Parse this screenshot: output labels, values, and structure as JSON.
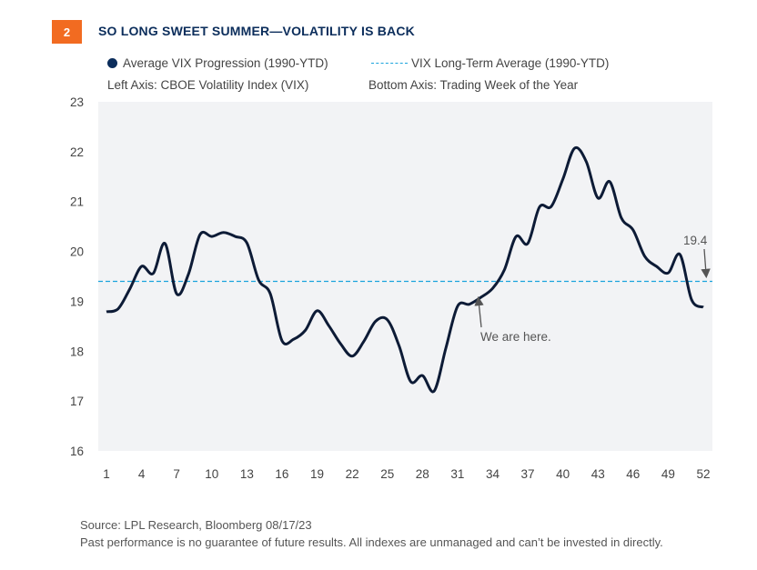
{
  "badge": "2",
  "title": "SO LONG SWEET SUMMER—VOLATILITY IS BACK",
  "legend": {
    "series": "Average VIX Progression (1990-YTD)",
    "average": "VIX Long-Term Average (1990-YTD)"
  },
  "axis_notes": {
    "left": "Left Axis: CBOE Volatility Index (VIX)",
    "bottom": "Bottom Axis: Trading Week of the Year"
  },
  "footer": {
    "source": "Source: LPL Research, Bloomberg 08/17/23",
    "disclaimer": "Past performance is no guarantee of future results. All indexes are unmanaged and can’t be invested in directly."
  },
  "colors": {
    "series": "#0d1b36",
    "average": "#1aa3dc",
    "badge": "#f26b21",
    "title": "#0b2d5b",
    "plot_bg": "#f2f3f5"
  },
  "chart_data": {
    "type": "line",
    "ylim": [
      16,
      23
    ],
    "yticks": [
      "16",
      "17",
      "18",
      "19",
      "20",
      "21",
      "22",
      "23"
    ],
    "xlim": [
      1,
      52
    ],
    "xticks": [
      "1",
      "4",
      "7",
      "10",
      "13",
      "16",
      "19",
      "22",
      "25",
      "28",
      "31",
      "34",
      "37",
      "40",
      "43",
      "46",
      "49",
      "52"
    ],
    "grid": false,
    "legend_position": "top",
    "series": [
      {
        "name": "Average VIX Progression (1990-YTD)",
        "x": [
          1,
          2,
          3,
          4,
          5,
          6,
          7,
          8,
          9,
          10,
          11,
          12,
          13,
          14,
          15,
          16,
          17,
          18,
          19,
          20,
          21,
          22,
          23,
          24,
          25,
          26,
          27,
          28,
          29,
          30,
          31,
          32,
          33,
          34,
          35,
          36,
          37,
          38,
          39,
          40,
          41,
          42,
          43,
          44,
          45,
          46,
          47,
          48,
          49,
          50,
          51,
          52
        ],
        "values": [
          18.79,
          18.85,
          19.25,
          19.7,
          19.56,
          20.16,
          19.15,
          19.54,
          20.34,
          20.3,
          20.38,
          20.3,
          20.17,
          19.43,
          19.15,
          18.21,
          18.24,
          18.42,
          18.81,
          18.51,
          18.15,
          17.9,
          18.2,
          18.6,
          18.63,
          18.11,
          17.39,
          17.51,
          17.2,
          18.06,
          18.9,
          18.94,
          19.08,
          19.26,
          19.63,
          20.3,
          20.16,
          20.89,
          20.9,
          21.45,
          22.07,
          21.8,
          21.07,
          21.4,
          20.67,
          20.43,
          19.9,
          19.7,
          19.57,
          19.94,
          19.03,
          18.88
        ]
      }
    ],
    "reference_line": {
      "name": "VIX Long-Term Average (1990-YTD)",
      "value": 19.4
    },
    "annotations": [
      {
        "text": "We are here.",
        "x": 33
      },
      {
        "text": "19.4",
        "x": 52
      }
    ]
  }
}
